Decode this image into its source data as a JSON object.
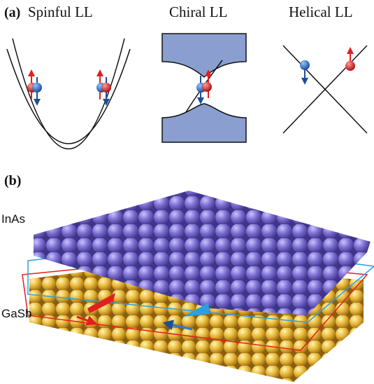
{
  "panel_a": {
    "label": "(a)",
    "diagrams": [
      {
        "title": "Spinful LL"
      },
      {
        "title": "Chiral LL"
      },
      {
        "title": "Helical LL"
      }
    ]
  },
  "panel_b": {
    "label": "(b)",
    "layers": [
      {
        "label": "InAs"
      },
      {
        "label": "GaSb"
      }
    ]
  }
}
